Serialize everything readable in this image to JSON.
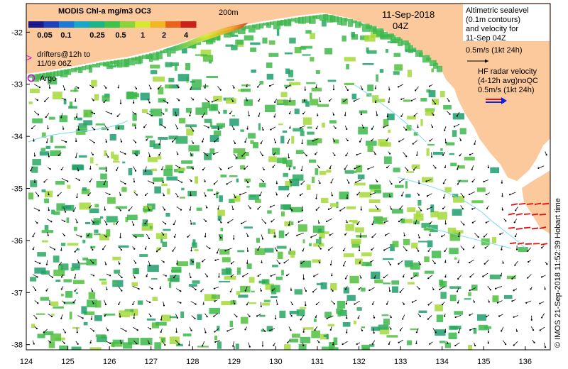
{
  "colorbar": {
    "title": "MODIS Chl-a mg/m3 OC3",
    "ticks": [
      "0.05",
      "0.1",
      "0.25",
      "0.5",
      "1",
      "2",
      "4"
    ],
    "colors": [
      "#1a1a8c",
      "#1f3fbf",
      "#1e78d8",
      "#17a7c9",
      "#1cb58a",
      "#3fc24a",
      "#8bd33a",
      "#d8e832",
      "#f3b623",
      "#e8641c",
      "#c8201a"
    ]
  },
  "labels": {
    "isobath": "200m",
    "date": "11-Sep-2018",
    "time": "04Z",
    "drifters_line1": "drifters@12h to",
    "drifters_line2": "11/09 06Z",
    "argo": "Argo",
    "altimetry": [
      "Altimetric sealevel",
      "(0.1m contours)",
      "and velocity for",
      "11-Sep 04Z",
      "0.5m/s (1kt 24h)"
    ],
    "hf_radar": [
      "HF radar velocity",
      "(4-12h avg)noQC",
      "0.5m/s (1kt 24h)"
    ],
    "copyright": "© IMOS 21-Sep-2018 11:52:39 Hobart time"
  },
  "axes": {
    "lon_ticks": [
      124,
      125,
      126,
      127,
      128,
      129,
      130,
      131,
      132,
      133,
      134,
      135,
      136
    ],
    "lat_ticks": [
      -32,
      -33,
      -34,
      -35,
      -36,
      -37,
      -38
    ],
    "lon_range": [
      124,
      136.6
    ],
    "lat_range": [
      -38.1,
      -31.45
    ]
  },
  "colors": {
    "land": "#fbc99c",
    "ocean": "#ffffff",
    "chl_main": "#3cb84a",
    "chl_dark": "#1d9e6f",
    "chl_light": "#a6d83a",
    "coast_chl": "#e06a1c",
    "drifter": "#e000e0",
    "argo": "#e000e0",
    "radar_red": "#e01010",
    "radar_blue": "#1020e0",
    "contour": "#80d8f0"
  }
}
